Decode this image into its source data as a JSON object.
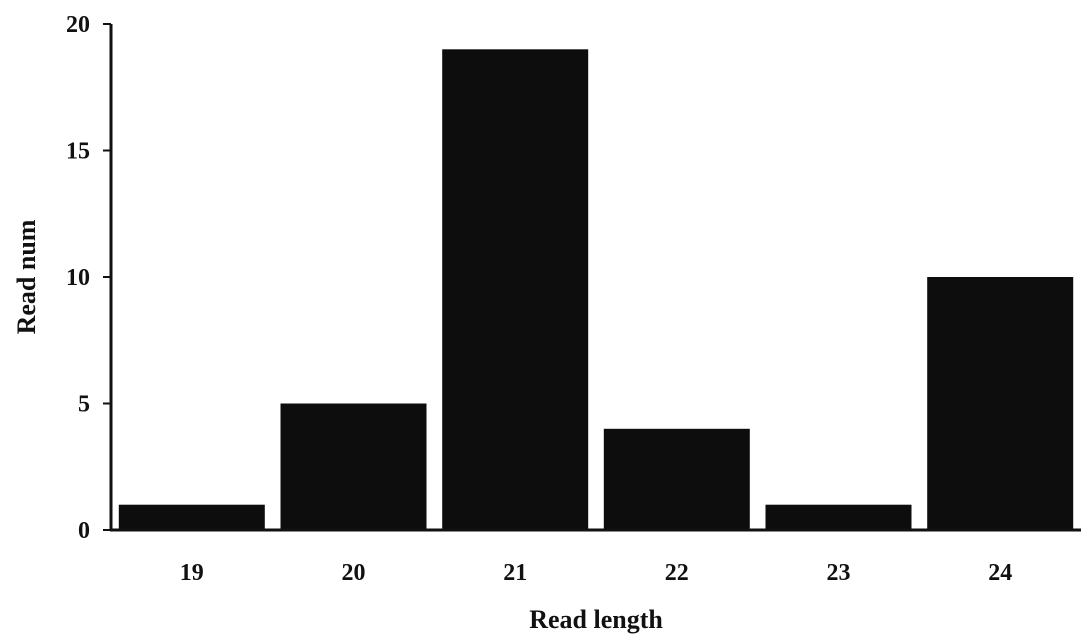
{
  "chart_data": {
    "type": "bar",
    "categories": [
      "19",
      "20",
      "21",
      "22",
      "23",
      "24"
    ],
    "values": [
      1,
      5,
      19,
      4,
      1,
      10
    ],
    "xlabel": "Read length",
    "ylabel": "Read num",
    "ylim": [
      0,
      20
    ],
    "yticks": [
      "0",
      "5",
      "10",
      "15",
      "20"
    ],
    "grid": false,
    "legend": "none",
    "bar_color": "#0d0d0d",
    "axis_color": "#111111"
  }
}
